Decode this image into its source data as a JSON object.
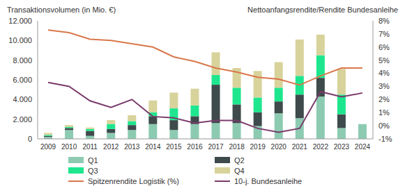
{
  "chart_data": {
    "type": "bar",
    "stacked": true,
    "grid": false,
    "legend": "bottom",
    "y_label": "Transaktionsvolumen (in Mio. €)",
    "y2_label": "Nettoanfangsrendite/Rendite Bundesanleihe",
    "categories": [
      "2009",
      "2010",
      "2011",
      "2012",
      "2013",
      "2014",
      "2015",
      "2016",
      "2017",
      "2018",
      "2019",
      "2020",
      "2021",
      "2022",
      "2023",
      "2024"
    ],
    "ylim": [
      0,
      12000
    ],
    "yticks": [
      0,
      {
        "value": 2000,
        "label": "2.000"
      },
      {
        "value": 4000,
        "label": "4.000"
      },
      {
        "value": 6000,
        "label": "6.000"
      },
      {
        "value": 8000,
        "label": "8.000"
      },
      {
        "value": 10000,
        "label": "10.000"
      },
      {
        "value": 12000,
        "label": "12.000"
      }
    ],
    "y2lim": [
      -1,
      8
    ],
    "y2ticks": [
      {
        "value": -1,
        "label": "-1%"
      },
      {
        "value": 0,
        "label": "0%"
      },
      {
        "value": 1,
        "label": "1%"
      },
      {
        "value": 2,
        "label": "2%"
      },
      {
        "value": 3,
        "label": "3%"
      },
      {
        "value": 4,
        "label": "4%"
      },
      {
        "value": 5,
        "label": "5%"
      },
      {
        "value": 6,
        "label": "6%"
      },
      {
        "value": 7,
        "label": "7%"
      },
      {
        "value": 8,
        "label": "8%"
      }
    ],
    "series": [
      {
        "name": "Q1",
        "type": "bar",
        "color": "#8ccbb2",
        "values": [
          200,
          900,
          300,
          600,
          900,
          1500,
          900,
          1500,
          1600,
          1600,
          1300,
          2600,
          2100,
          4300,
          1100,
          1500
        ]
      },
      {
        "name": "Q2",
        "type": "bar",
        "color": "#3e4a4b",
        "values": [
          100,
          200,
          500,
          400,
          500,
          800,
          1000,
          800,
          3900,
          1900,
          1400,
          1200,
          2400,
          1900,
          1400,
          null
        ]
      },
      {
        "name": "Q3",
        "type": "bar",
        "color": "#1ee68e",
        "values": [
          100,
          100,
          200,
          500,
          400,
          400,
          1200,
          1100,
          1000,
          1700,
          1500,
          1400,
          1900,
          2300,
          2000,
          null
        ]
      },
      {
        "name": "Q4",
        "type": "bar",
        "color": "#d8d39b",
        "values": [
          200,
          200,
          150,
          400,
          600,
          1200,
          1600,
          1700,
          2300,
          2000,
          2700,
          2600,
          3700,
          2100,
          2600,
          null
        ]
      },
      {
        "name": "Spitzenrendite Logistik (%)",
        "type": "line",
        "axis": "y2",
        "color": "#d9774a",
        "values": [
          7.3,
          7.1,
          6.6,
          6.5,
          6.25,
          6.0,
          5.25,
          4.9,
          4.4,
          4.1,
          3.7,
          3.55,
          3.1,
          3.8,
          4.4,
          4.4
        ]
      },
      {
        "name": "10-j. Bundesanleihe",
        "type": "line",
        "axis": "y2",
        "color": "#7a3a6a",
        "values": [
          3.3,
          3.0,
          1.9,
          1.4,
          2.0,
          0.7,
          0.6,
          0.2,
          0.4,
          0.4,
          -0.2,
          -0.5,
          -0.2,
          2.6,
          2.2,
          2.5
        ]
      }
    ]
  }
}
